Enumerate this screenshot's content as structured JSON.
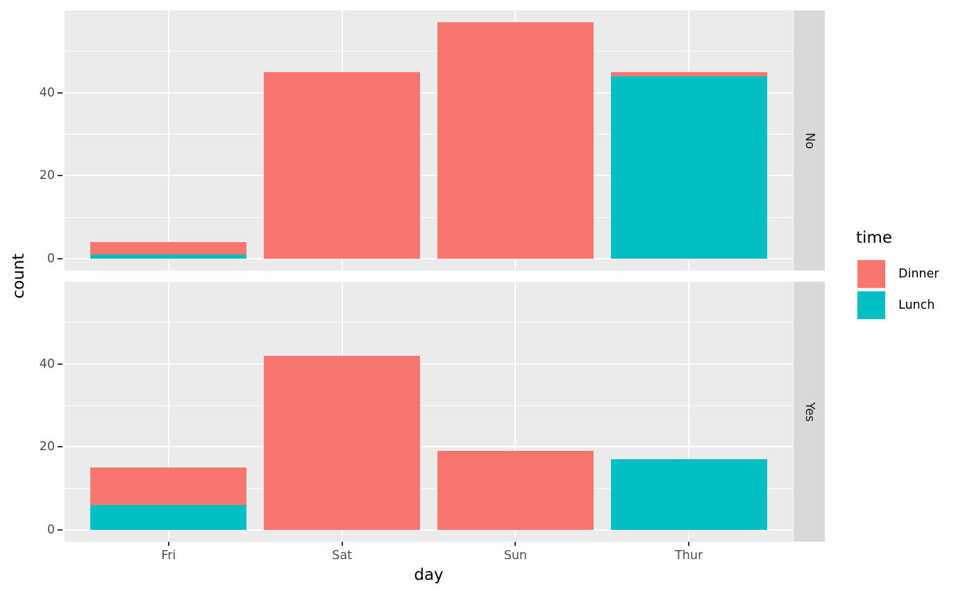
{
  "chart_data": {
    "type": "bar",
    "stacked": true,
    "title": "",
    "xlabel": "day",
    "ylabel": "count",
    "categories": [
      "Fri",
      "Sat",
      "Sun",
      "Thur"
    ],
    "facets": [
      {
        "label": "No",
        "series": [
          {
            "name": "Dinner",
            "values": [
              3,
              45,
              57,
              1
            ]
          },
          {
            "name": "Lunch",
            "values": [
              1,
              0,
              0,
              44
            ]
          }
        ]
      },
      {
        "label": "Yes",
        "series": [
          {
            "name": "Dinner",
            "values": [
              9,
              42,
              19,
              0
            ]
          },
          {
            "name": "Lunch",
            "values": [
              6,
              0,
              0,
              17
            ]
          }
        ]
      }
    ],
    "legend": {
      "title": "time",
      "position": "right",
      "entries": [
        {
          "label": "Dinner",
          "color": "#F8766D"
        },
        {
          "label": "Lunch",
          "color": "#00BFC4"
        }
      ]
    },
    "y_ticks": [
      0,
      20,
      40
    ],
    "y_minor_ticks": [
      10,
      30,
      50
    ],
    "ylim": [
      -2.85,
      59.85
    ],
    "grid": true,
    "colors": {
      "panel_background": "#EBEBEB",
      "strip_background": "#D9D9D9",
      "grid_major": "#FFFFFF",
      "grid_minor": "#FFFFFF",
      "axis_text": "#4D4D4D",
      "tick_mark": "#333333",
      "title_text": "#000000",
      "strip_text": "#1A1A1A",
      "legend_key_background": "#F2F2F2"
    }
  }
}
